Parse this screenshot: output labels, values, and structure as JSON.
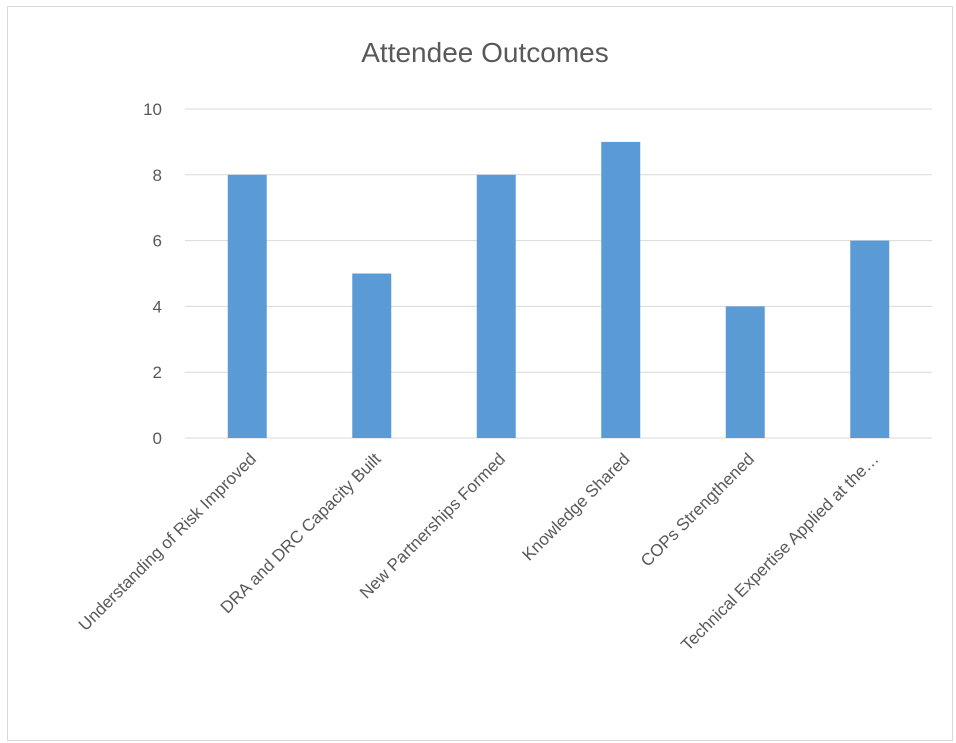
{
  "chart_data": {
    "type": "bar",
    "title": "Attendee Outcomes",
    "xlabel": "",
    "ylabel": "",
    "categories": [
      "Understanding of Risk Improved",
      "DRA and DRC Capacity Built",
      "New Partnerships Formed",
      "Knowledge Shared",
      "COPs Strengthened",
      "Technical Expertise Applied at the…"
    ],
    "values": [
      8,
      5,
      8,
      9,
      4,
      6
    ],
    "ylim": [
      0,
      10
    ],
    "yticks": [
      0,
      2,
      4,
      6,
      8,
      10
    ],
    "grid": true,
    "legend": "none",
    "colors": {
      "bar": "#5b9bd5",
      "grid": "#d9d9d9",
      "text": "#595959"
    }
  }
}
